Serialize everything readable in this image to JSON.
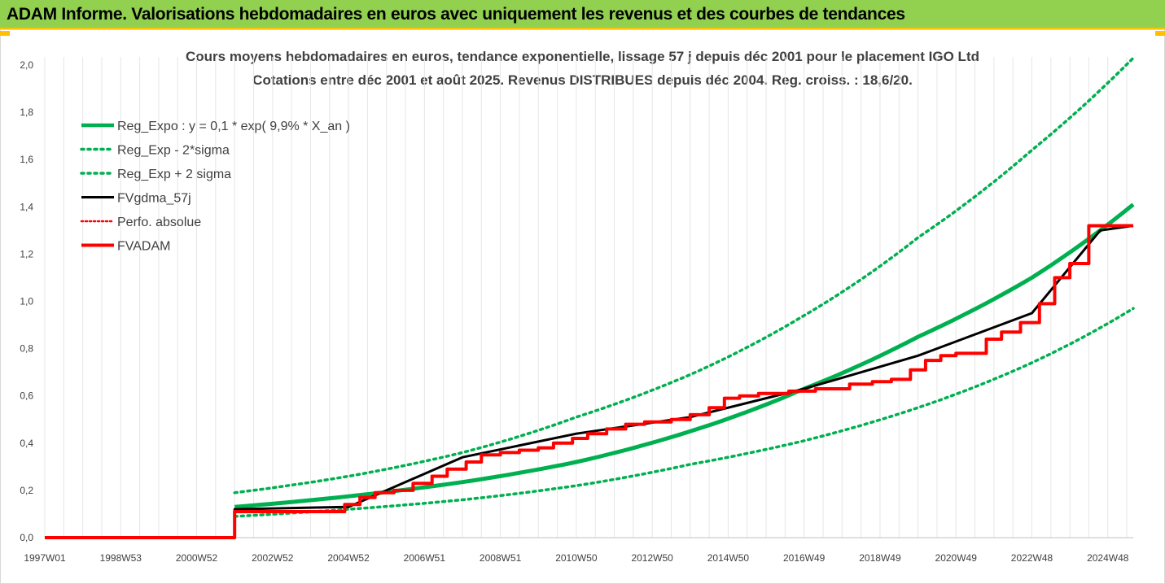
{
  "header": {
    "title": "ADAM Informe. Valorisations hebdomadaires en euros avec uniquement les revenus et des courbes de tendances"
  },
  "chart_data": {
    "type": "line",
    "title": "Cours moyens hebdomadaires en euros, tendance exponentielle, lissage 57 j depuis déc 2001 pour le placement IGO Ltd",
    "subtitle": "Cotations entre déc 2001 et août 2025. Revenus DISTRIBUES depuis déc 2004. Reg. croiss. : 18,6/20.",
    "ylim": [
      0,
      2.0
    ],
    "yticks": [
      "0,0",
      "0,2",
      "0,4",
      "0,6",
      "0,8",
      "1,0",
      "1,2",
      "1,4",
      "1,6",
      "1,8",
      "2,0"
    ],
    "xlim": [
      1997.0,
      2025.67
    ],
    "xticks": [
      {
        "label": "1997W01",
        "x": 1997.0
      },
      {
        "label": "1998W53",
        "x": 1999.0
      },
      {
        "label": "2000W52",
        "x": 2001.0
      },
      {
        "label": "2002W52",
        "x": 2003.0
      },
      {
        "label": "2004W52",
        "x": 2005.0
      },
      {
        "label": "2006W51",
        "x": 2007.0
      },
      {
        "label": "2008W51",
        "x": 2009.0
      },
      {
        "label": "2010W50",
        "x": 2011.0
      },
      {
        "label": "2012W50",
        "x": 2013.0
      },
      {
        "label": "2014W50",
        "x": 2015.0
      },
      {
        "label": "2016W49",
        "x": 2017.0
      },
      {
        "label": "2018W49",
        "x": 2019.0
      },
      {
        "label": "2020W49",
        "x": 2021.0
      },
      {
        "label": "2022W48",
        "x": 2023.0
      },
      {
        "label": "2024W48",
        "x": 2025.0
      }
    ],
    "grid": "vertical",
    "legend_position": "top-left",
    "series": [
      {
        "name": "Reg_Expo : y = 0,1 * exp( 9,9% *  X_an )",
        "color": "#00b050",
        "style": "solid",
        "width": 5,
        "points": [
          [
            2002.0,
            0.13
          ],
          [
            2005.0,
            0.175
          ],
          [
            2008.0,
            0.235
          ],
          [
            2011.0,
            0.32
          ],
          [
            2014.0,
            0.45
          ],
          [
            2017.0,
            0.63
          ],
          [
            2020.0,
            0.85
          ],
          [
            2023.0,
            1.1
          ],
          [
            2025.67,
            1.41
          ]
        ]
      },
      {
        "name": "Reg_Exp - 2*sigma",
        "color": "#00b050",
        "style": "dotted",
        "width": 3.5,
        "points": [
          [
            2002.0,
            0.09
          ],
          [
            2005.0,
            0.12
          ],
          [
            2008.0,
            0.16
          ],
          [
            2011.0,
            0.22
          ],
          [
            2014.0,
            0.31
          ],
          [
            2017.0,
            0.41
          ],
          [
            2020.0,
            0.55
          ],
          [
            2023.0,
            0.74
          ],
          [
            2025.67,
            0.97
          ]
        ]
      },
      {
        "name": "Reg_Exp + 2 sigma",
        "color": "#00b050",
        "style": "dotted",
        "width": 3.5,
        "points": [
          [
            2002.0,
            0.19
          ],
          [
            2005.0,
            0.26
          ],
          [
            2008.0,
            0.36
          ],
          [
            2011.0,
            0.51
          ],
          [
            2014.0,
            0.69
          ],
          [
            2017.0,
            0.94
          ],
          [
            2020.0,
            1.27
          ],
          [
            2023.0,
            1.64
          ],
          [
            2025.67,
            2.03
          ]
        ]
      },
      {
        "name": "FVgdma_57j",
        "color": "#000000",
        "style": "solid",
        "width": 3,
        "points": [
          [
            1997.0,
            0.0
          ],
          [
            2002.0,
            0.0
          ],
          [
            2002.0,
            0.12
          ],
          [
            2005.0,
            0.13
          ],
          [
            2008.0,
            0.34
          ],
          [
            2011.0,
            0.44
          ],
          [
            2014.0,
            0.51
          ],
          [
            2017.0,
            0.63
          ],
          [
            2020.0,
            0.77
          ],
          [
            2023.0,
            0.95
          ],
          [
            2024.8,
            1.3
          ],
          [
            2025.67,
            1.32
          ]
        ]
      },
      {
        "name": "Perfo. absolue",
        "color": "#ff0000",
        "style": "dotted",
        "width": 2.5,
        "points": []
      },
      {
        "name": "FVADAM",
        "color": "#ff0000",
        "style": "solid",
        "width": 4,
        "points": [
          [
            1997.0,
            0.0
          ],
          [
            2002.0,
            0.0
          ],
          [
            2002.0,
            0.11
          ],
          [
            2004.9,
            0.11
          ],
          [
            2004.9,
            0.14
          ],
          [
            2005.3,
            0.14
          ],
          [
            2005.3,
            0.17
          ],
          [
            2005.7,
            0.17
          ],
          [
            2005.7,
            0.19
          ],
          [
            2006.2,
            0.19
          ],
          [
            2006.2,
            0.2
          ],
          [
            2006.7,
            0.2
          ],
          [
            2006.7,
            0.23
          ],
          [
            2007.2,
            0.23
          ],
          [
            2007.2,
            0.26
          ],
          [
            2007.6,
            0.26
          ],
          [
            2007.6,
            0.29
          ],
          [
            2008.1,
            0.29
          ],
          [
            2008.1,
            0.32
          ],
          [
            2008.5,
            0.32
          ],
          [
            2008.5,
            0.35
          ],
          [
            2009.0,
            0.35
          ],
          [
            2009.0,
            0.36
          ],
          [
            2009.5,
            0.36
          ],
          [
            2009.5,
            0.37
          ],
          [
            2010.0,
            0.37
          ],
          [
            2010.0,
            0.38
          ],
          [
            2010.4,
            0.38
          ],
          [
            2010.4,
            0.4
          ],
          [
            2010.9,
            0.4
          ],
          [
            2010.9,
            0.42
          ],
          [
            2011.3,
            0.42
          ],
          [
            2011.3,
            0.44
          ],
          [
            2011.8,
            0.44
          ],
          [
            2011.8,
            0.46
          ],
          [
            2012.3,
            0.46
          ],
          [
            2012.3,
            0.48
          ],
          [
            2012.8,
            0.48
          ],
          [
            2012.8,
            0.49
          ],
          [
            2013.5,
            0.49
          ],
          [
            2013.5,
            0.5
          ],
          [
            2014.0,
            0.5
          ],
          [
            2014.0,
            0.52
          ],
          [
            2014.5,
            0.52
          ],
          [
            2014.5,
            0.55
          ],
          [
            2014.9,
            0.55
          ],
          [
            2014.9,
            0.59
          ],
          [
            2015.3,
            0.59
          ],
          [
            2015.3,
            0.6
          ],
          [
            2015.8,
            0.6
          ],
          [
            2015.8,
            0.61
          ],
          [
            2016.6,
            0.61
          ],
          [
            2016.6,
            0.62
          ],
          [
            2017.3,
            0.62
          ],
          [
            2017.3,
            0.63
          ],
          [
            2018.2,
            0.63
          ],
          [
            2018.2,
            0.65
          ],
          [
            2018.8,
            0.65
          ],
          [
            2018.8,
            0.66
          ],
          [
            2019.3,
            0.66
          ],
          [
            2019.3,
            0.67
          ],
          [
            2019.8,
            0.67
          ],
          [
            2019.8,
            0.71
          ],
          [
            2020.2,
            0.71
          ],
          [
            2020.2,
            0.75
          ],
          [
            2020.6,
            0.75
          ],
          [
            2020.6,
            0.77
          ],
          [
            2021.0,
            0.77
          ],
          [
            2021.0,
            0.78
          ],
          [
            2021.8,
            0.78
          ],
          [
            2021.8,
            0.84
          ],
          [
            2022.2,
            0.84
          ],
          [
            2022.2,
            0.87
          ],
          [
            2022.7,
            0.87
          ],
          [
            2022.7,
            0.91
          ],
          [
            2023.2,
            0.91
          ],
          [
            2023.2,
            0.99
          ],
          [
            2023.6,
            0.99
          ],
          [
            2023.6,
            1.1
          ],
          [
            2024.0,
            1.1
          ],
          [
            2024.0,
            1.16
          ],
          [
            2024.5,
            1.16
          ],
          [
            2024.5,
            1.32
          ],
          [
            2025.67,
            1.32
          ]
        ]
      }
    ]
  }
}
